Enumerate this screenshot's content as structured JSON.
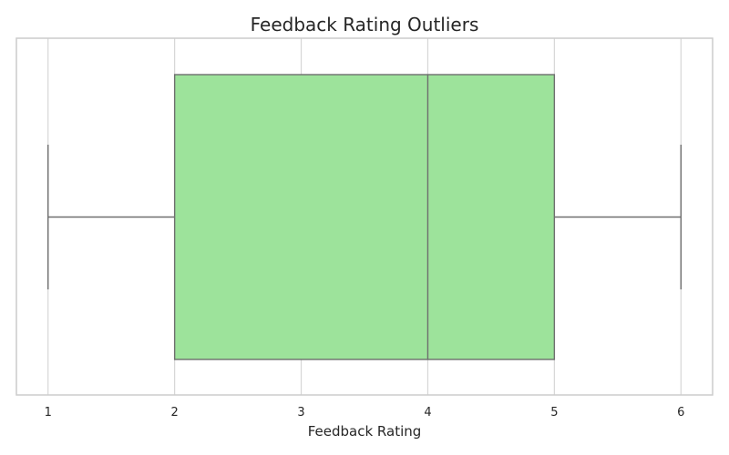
{
  "chart_data": {
    "type": "box",
    "title": "Feedback Rating Outliers",
    "xlabel": "Feedback Rating",
    "ylabel": "",
    "xlim": [
      0.75,
      6.25
    ],
    "x_ticks": [
      "1",
      "2",
      "3",
      "4",
      "5",
      "6"
    ],
    "x_tick_values": [
      1,
      2,
      3,
      4,
      5,
      6
    ],
    "grid": true,
    "orientation": "horizontal",
    "box": {
      "whisker_low": 1,
      "q1": 2,
      "median": 4,
      "q3": 5,
      "whisker_high": 6,
      "outliers": []
    },
    "colors": {
      "box_fill": "#9de39b",
      "line": "#6e6e6e",
      "grid": "#d6d6d6",
      "frame": "#cccccc"
    }
  }
}
